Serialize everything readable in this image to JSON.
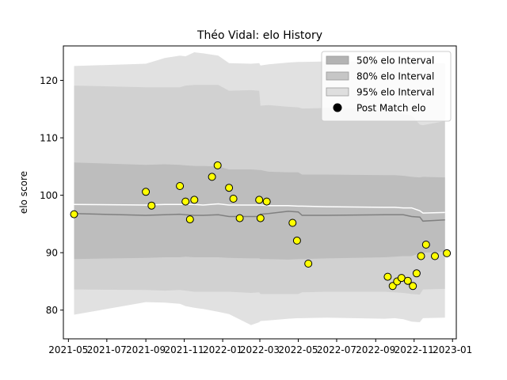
{
  "chart_data": {
    "type": "line",
    "title": "Théo Vidal: elo History",
    "xlabel": "",
    "ylabel": "elo score",
    "xlim": [
      "2021-04-23",
      "2023-01-07"
    ],
    "ylim": [
      75.0,
      126.0
    ],
    "x_ticks": [
      {
        "value": "2021-05-01",
        "label": "2021-05"
      },
      {
        "value": "2021-07-01",
        "label": "2021-07"
      },
      {
        "value": "2021-09-01",
        "label": "2021-09"
      },
      {
        "value": "2021-11-01",
        "label": "2021-11"
      },
      {
        "value": "2022-01-01",
        "label": "2022-01"
      },
      {
        "value": "2022-03-01",
        "label": "2022-03"
      },
      {
        "value": "2022-05-01",
        "label": "2022-05"
      },
      {
        "value": "2022-07-01",
        "label": "2022-07"
      },
      {
        "value": "2022-09-01",
        "label": "2022-09"
      },
      {
        "value": "2022-11-01",
        "label": "2022-11"
      },
      {
        "value": "2023-01-01",
        "label": "2023-01"
      }
    ],
    "y_ticks": [
      80,
      90,
      100,
      110,
      120
    ],
    "grid": false,
    "legend": {
      "position": "top-right",
      "entries": [
        {
          "label": "50% elo Interval",
          "color": "#b3b3b3",
          "kind": "patch"
        },
        {
          "label": "80% elo Interval",
          "color": "#c6c6c6",
          "kind": "patch"
        },
        {
          "label": "95% elo Interval",
          "color": "#dedede",
          "kind": "patch"
        },
        {
          "label": "Post Match elo",
          "color": "#000000",
          "kind": "marker"
        }
      ]
    },
    "band_dates": [
      "2021-05-10",
      "2021-09-01",
      "2021-10-01",
      "2021-10-25",
      "2021-11-03",
      "2021-11-17",
      "2021-12-01",
      "2021-12-25",
      "2022-01-11",
      "2022-02-15",
      "2022-02-28",
      "2022-03-02",
      "2022-03-15",
      "2022-04-15",
      "2022-05-01",
      "2022-05-07",
      "2022-06-15",
      "2022-09-15",
      "2022-10-01",
      "2022-10-15",
      "2022-10-28",
      "2022-11-10",
      "2022-11-15",
      "2022-12-20"
    ],
    "series": [
      {
        "name": "95% elo Interval",
        "kind": "band",
        "color": "#e1e1e1",
        "upper": [
          122.5,
          122.9,
          123.9,
          124.3,
          124.2,
          124.9,
          124.7,
          124.3,
          123.0,
          122.9,
          123.0,
          122.6,
          122.8,
          123.1,
          123.2,
          123.2,
          123.3,
          123.3,
          123.3,
          123.3,
          123.4,
          123.2,
          123.0,
          123.0
        ],
        "lower": [
          79.2,
          81.4,
          81.3,
          81.1,
          80.7,
          80.4,
          80.2,
          79.7,
          79.3,
          77.4,
          77.9,
          78.1,
          78.2,
          78.5,
          78.6,
          78.6,
          78.7,
          78.5,
          78.6,
          78.4,
          78.0,
          77.9,
          78.6,
          78.7
        ]
      },
      {
        "name": "80% elo Interval",
        "kind": "band",
        "color": "#d1d1d1",
        "upper": [
          119.1,
          118.8,
          118.8,
          118.8,
          119.1,
          119.2,
          119.2,
          119.2,
          118.2,
          118.3,
          118.2,
          115.6,
          115.7,
          115.4,
          115.3,
          115.1,
          115.2,
          115.0,
          114.6,
          114.1,
          113.9,
          112.3,
          112.2,
          112.9
        ],
        "lower": [
          83.6,
          83.5,
          83.4,
          83.5,
          83.4,
          83.2,
          83.2,
          83.2,
          83.2,
          83.0,
          83.1,
          82.8,
          82.8,
          82.8,
          82.8,
          83.1,
          83.2,
          83.2,
          83.1,
          83.0,
          82.8,
          82.7,
          83.6,
          83.7
        ]
      },
      {
        "name": "50% elo Interval",
        "kind": "band",
        "color": "#bdbdbd",
        "upper": [
          105.7,
          105.3,
          105.4,
          105.3,
          105.2,
          105.1,
          105.1,
          105.0,
          104.5,
          104.5,
          104.4,
          104.4,
          104.1,
          104.0,
          104.0,
          103.6,
          103.6,
          103.5,
          103.5,
          103.4,
          103.2,
          103.1,
          103.2,
          103.1
        ],
        "lower": [
          88.9,
          89.1,
          89.2,
          89.2,
          89.3,
          89.2,
          89.2,
          89.2,
          89.1,
          89.0,
          89.0,
          88.9,
          88.9,
          88.8,
          88.9,
          88.9,
          89.0,
          89.2,
          89.3,
          89.4,
          89.4,
          89.9,
          90.0,
          90.2
        ]
      },
      {
        "name": "mean elo",
        "kind": "line",
        "color": "#ffffff",
        "values": [
          98.4,
          98.3,
          98.4,
          98.4,
          98.4,
          98.4,
          98.3,
          98.5,
          98.3,
          98.3,
          98.3,
          98.3,
          98.2,
          98.2,
          98.1,
          98.1,
          98.0,
          97.9,
          97.9,
          97.8,
          97.8,
          97.3,
          96.9,
          97.0
        ]
      },
      {
        "name": "median elo",
        "kind": "line",
        "color": "#808080",
        "values": [
          96.8,
          96.5,
          96.6,
          96.7,
          96.6,
          96.5,
          96.5,
          96.6,
          96.3,
          96.3,
          96.3,
          96.7,
          96.8,
          97.2,
          97.1,
          96.5,
          96.5,
          96.6,
          96.6,
          96.6,
          96.3,
          96.2,
          95.5,
          95.7
        ]
      },
      {
        "name": "Post Match elo",
        "kind": "scatter",
        "color": "#ffff00",
        "edge": "#000000",
        "points": [
          {
            "x": "2021-05-10",
            "y": 96.7
          },
          {
            "x": "2021-09-01",
            "y": 100.6
          },
          {
            "x": "2021-09-10",
            "y": 98.2
          },
          {
            "x": "2021-10-25",
            "y": 101.6
          },
          {
            "x": "2021-11-03",
            "y": 98.9
          },
          {
            "x": "2021-11-10",
            "y": 95.8
          },
          {
            "x": "2021-11-17",
            "y": 99.2
          },
          {
            "x": "2021-12-15",
            "y": 103.2
          },
          {
            "x": "2021-12-24",
            "y": 105.2
          },
          {
            "x": "2022-01-11",
            "y": 101.3
          },
          {
            "x": "2022-01-18",
            "y": 99.4
          },
          {
            "x": "2022-01-28",
            "y": 96.0
          },
          {
            "x": "2022-02-28",
            "y": 99.2
          },
          {
            "x": "2022-03-02",
            "y": 96.0
          },
          {
            "x": "2022-03-12",
            "y": 98.9
          },
          {
            "x": "2022-04-22",
            "y": 95.2
          },
          {
            "x": "2022-04-29",
            "y": 92.1
          },
          {
            "x": "2022-05-17",
            "y": 88.1
          },
          {
            "x": "2022-09-20",
            "y": 85.8
          },
          {
            "x": "2022-09-28",
            "y": 84.2
          },
          {
            "x": "2022-10-05",
            "y": 85.0
          },
          {
            "x": "2022-10-12",
            "y": 85.6
          },
          {
            "x": "2022-10-22",
            "y": 85.1
          },
          {
            "x": "2022-10-30",
            "y": 84.2
          },
          {
            "x": "2022-11-05",
            "y": 86.4
          },
          {
            "x": "2022-11-12",
            "y": 89.4
          },
          {
            "x": "2022-11-20",
            "y": 91.4
          },
          {
            "x": "2022-12-04",
            "y": 89.4
          },
          {
            "x": "2022-12-23",
            "y": 89.9
          }
        ]
      }
    ]
  }
}
